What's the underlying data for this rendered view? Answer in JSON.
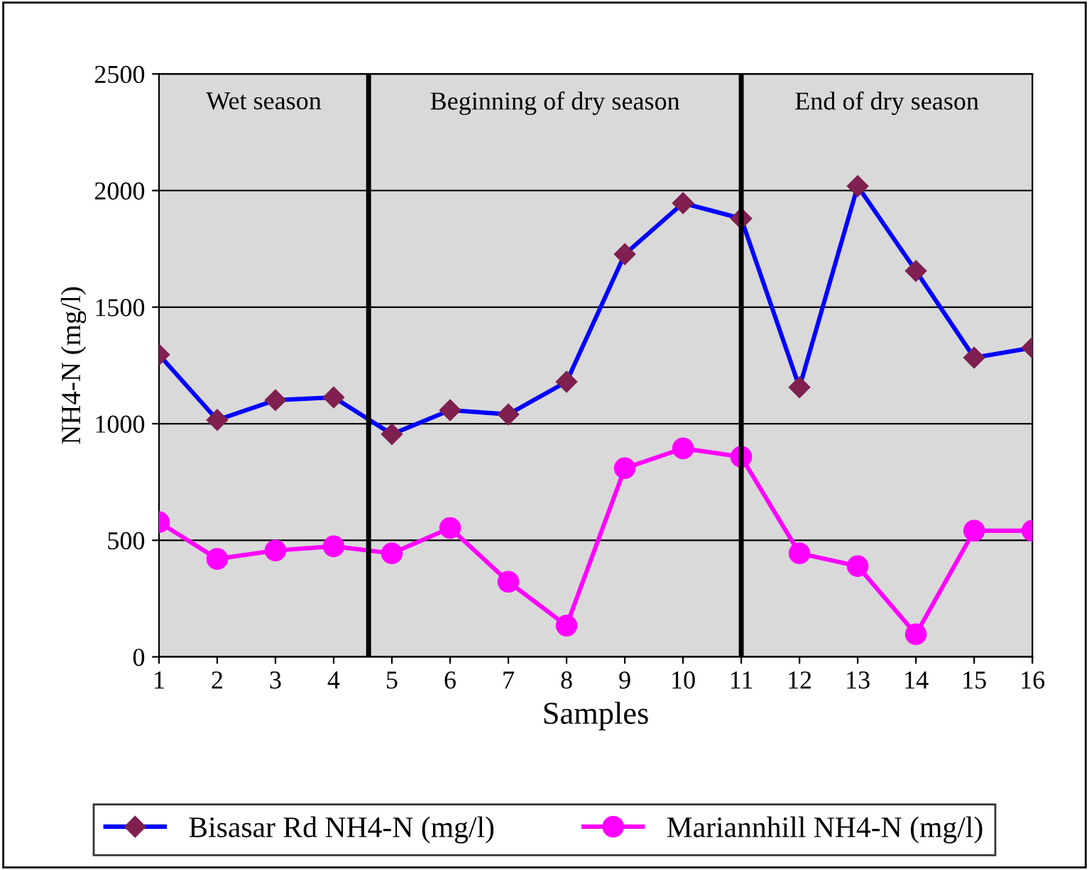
{
  "chart_data": {
    "type": "line",
    "xlabel": "Samples",
    "ylabel": "NH4-N (mg/l)",
    "x": [
      1,
      2,
      3,
      4,
      5,
      6,
      7,
      8,
      9,
      10,
      11,
      12,
      13,
      14,
      15,
      16
    ],
    "xlim": [
      1,
      16
    ],
    "xticks": [
      1,
      2,
      3,
      4,
      5,
      6,
      7,
      8,
      9,
      10,
      11,
      12,
      13,
      14,
      15,
      16
    ],
    "ylim": [
      0,
      2500
    ],
    "yticks": [
      0,
      500,
      1000,
      1500,
      2000,
      2500
    ],
    "grid": "y",
    "legend": "bottom",
    "line_style": "solid",
    "series": [
      {
        "name": "Bisasar Rd NH4-N (mg/l)",
        "color": "#0000ff",
        "marker": "diamond",
        "values": [
          1296,
          1016,
          1101,
          1113,
          955,
          1058,
          1040,
          1180,
          1727,
          1946,
          1880,
          1156,
          2019,
          1655,
          1283,
          1326
        ]
      },
      {
        "name": "Mariannhill NH4-N (mg/l)",
        "color": "#ff00ff",
        "marker": "circle",
        "values": [
          578,
          420,
          456,
          474,
          444,
          553,
          322,
          134,
          809,
          894,
          858,
          444,
          389,
          97,
          541,
          541
        ]
      }
    ],
    "ref_lines": [
      {
        "axis": "x",
        "value": 4.6,
        "color": "#000000"
      },
      {
        "axis": "x",
        "value": 11,
        "color": "#000000"
      }
    ],
    "annotations": [
      "Wet season",
      "Beginning of dry season",
      "End of dry season"
    ]
  }
}
